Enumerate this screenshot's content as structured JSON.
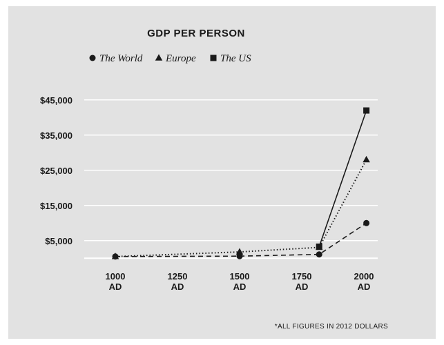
{
  "chart_data": {
    "type": "line",
    "title": "GDP PER PERSON",
    "categories": [
      "1000 AD",
      "1250 AD",
      "1500 AD",
      "1750 AD",
      "2000 AD"
    ],
    "category_lines": [
      [
        "1000",
        "AD"
      ],
      [
        "1250",
        "AD"
      ],
      [
        "1500",
        "AD"
      ],
      [
        "1750",
        "AD"
      ],
      [
        "2000",
        "AD"
      ]
    ],
    "y_ticks": [
      {
        "value": 5000,
        "label": "$5,000"
      },
      {
        "value": 15000,
        "label": "$15,000"
      },
      {
        "value": 25000,
        "label": "$25,000"
      },
      {
        "value": 35000,
        "label": "$35,000"
      },
      {
        "value": 45000,
        "label": "$45,000"
      }
    ],
    "ylim": [
      -4000,
      45000
    ],
    "xlim": [
      1000,
      2000
    ],
    "legend_position": "top",
    "grid": true,
    "series": [
      {
        "name": "The World",
        "marker": "circle",
        "line": "dashed",
        "points": [
          [
            1000,
            500
          ],
          [
            1500,
            600
          ],
          [
            1820,
            1100
          ],
          [
            2010,
            10000
          ]
        ]
      },
      {
        "name": "Europe",
        "marker": "triangle",
        "line": "dotted",
        "points": [
          [
            1000,
            500
          ],
          [
            1500,
            1800
          ],
          [
            1820,
            3100
          ],
          [
            2010,
            28000
          ]
        ]
      },
      {
        "name": "The US",
        "marker": "square",
        "line": "solid",
        "points": [
          [
            1820,
            3300
          ],
          [
            2010,
            42000
          ]
        ]
      }
    ],
    "footnote": "*ALL FIGURES IN 2012 DOLLARS"
  },
  "colors": {
    "panel": "#e2e2e2",
    "ink": "#1a1a1a",
    "grid": "#ffffff"
  }
}
